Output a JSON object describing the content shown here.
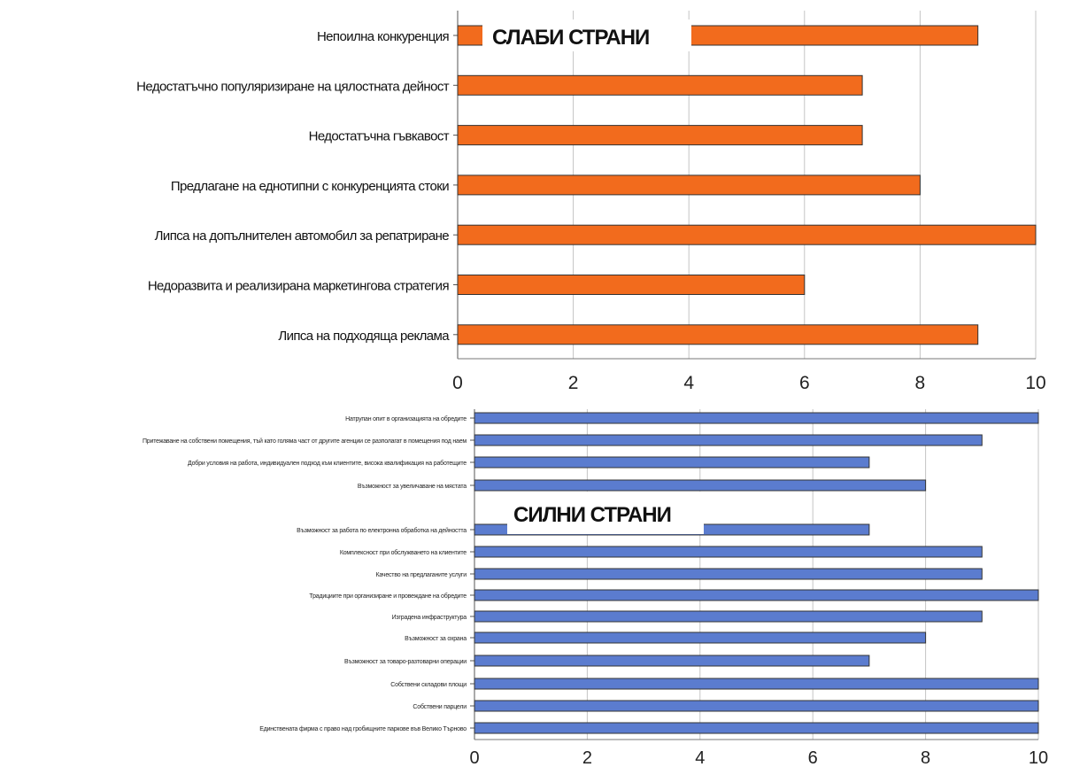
{
  "chart_data": [
    {
      "type": "bar",
      "orientation": "horizontal",
      "title": "СЛАБИ СТРАНИ",
      "categories": [
        "Непоилна конкуренция",
        "Недостатъчно популяризиране на цялостната дейност",
        "Недостатъчна гъвкавост",
        "Предлагане на еднотипни с конкуренцията стоки",
        "Липса на допълнителен автомобил за репатриране",
        "Недоразвита и реализирана маркетингова стратегия",
        "Липса на подходяща реклама"
      ],
      "values": [
        9,
        7,
        7,
        8,
        10,
        6,
        9
      ],
      "xlim": [
        0,
        10
      ],
      "xticks": [
        "0",
        "2",
        "4",
        "6",
        "8",
        "10"
      ],
      "bar_color": "#f26b1d",
      "grid": true
    },
    {
      "type": "bar",
      "orientation": "horizontal",
      "title": "СИЛНИ СТРАНИ",
      "categories": [
        "Натрупан опит в организацията на обредите",
        "Притежаване на собствени помещения, тъй като голяма част от другите агенции се разполагат в помещения под наем",
        "Добри условия на работа, индивидуален подход към клиентите, висока квалификация на работещите",
        "Възможност за увеличаване на мястата",
        "Възможност за работа по електронна обработка на дейността",
        "Комплексност при обслужването на клиентите",
        "Качество на предлаганите услуги",
        "Традициите при организиране и провеждане на обредите",
        "Изградена инфраструктура",
        "Възможност за охрана",
        "Възможност за товаро-разтоварни операции",
        "Собствени складови площи",
        "Собствени парцели",
        "Единствената фирма с право над гробищните паркове във Велико Търново"
      ],
      "values": [
        10,
        9,
        7,
        8,
        7,
        9,
        9,
        10,
        9,
        8,
        7,
        10,
        10,
        10
      ],
      "xlim": [
        0,
        10
      ],
      "xticks": [
        "0",
        "2",
        "4",
        "6",
        "8",
        "10"
      ],
      "bar_color": "#5b7ccf",
      "grid": true
    }
  ]
}
